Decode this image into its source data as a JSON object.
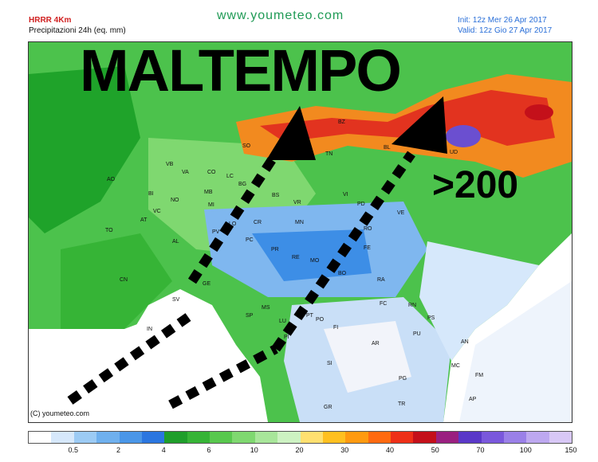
{
  "header": {
    "model": "HRRR 4Km",
    "field": "Precipitazioni 24h (eq. mm)",
    "site": "www.youmeteo.com",
    "init": "Init: 12z Mer   26 Apr 2017",
    "valid": "Valid: 12z Gio   27 Apr 2017"
  },
  "overlay": {
    "title": "MALTEMPO",
    "amount": ">200"
  },
  "map": {
    "copyright": "(C) youmeteo.com",
    "cities": [
      "SO",
      "BZ",
      "TN",
      "BL",
      "UD",
      "VB",
      "AO",
      "BI",
      "VA",
      "CO",
      "LC",
      "MB",
      "MI",
      "BG",
      "BS",
      "VR",
      "VI",
      "TV",
      "PD",
      "VE",
      "NO",
      "VC",
      "TO",
      "AL",
      "PV",
      "LO",
      "CR",
      "PC",
      "AT",
      "MN",
      "RO",
      "PR",
      "RE",
      "FE",
      "MO",
      "BO",
      "CN",
      "SV",
      "GE",
      "SP",
      "MS",
      "PT",
      "PO",
      "IN",
      "LU",
      "PI",
      "FI",
      "AR",
      "SI",
      "GR",
      "RA",
      "FC",
      "RN",
      "PS",
      "PU",
      "AN",
      "MC",
      "FM",
      "AP",
      "PG",
      "TR"
    ]
  },
  "colors": {
    "sea": "#ffffff",
    "dry": "#f2f4fa",
    "light": "#7fb7ef",
    "mid": "#3d8ee6",
    "green": "#4cc24c",
    "darkgreen": "#1fa32a",
    "orange": "#f28a1f",
    "red": "#e2331f",
    "purple": "#6b4fd0"
  },
  "legend": {
    "ticks": [
      "0.5",
      "2",
      "4",
      "6",
      "10",
      "20",
      "30",
      "40",
      "50",
      "70",
      "100",
      "150"
    ],
    "colors": [
      "#ffffff",
      "#d6e8fb",
      "#9ccbf4",
      "#6fb0ee",
      "#4a96e8",
      "#2b76e0",
      "#1f9e2b",
      "#36b436",
      "#58c84e",
      "#7fd870",
      "#a8e69a",
      "#cdf2c2",
      "#ffe070",
      "#ffc020",
      "#ff9a10",
      "#ff6a10",
      "#ee3018",
      "#c4101a",
      "#9a2080",
      "#5a38c8",
      "#7a58dc",
      "#9a80e8",
      "#bda8f0",
      "#d8c8f6"
    ]
  }
}
